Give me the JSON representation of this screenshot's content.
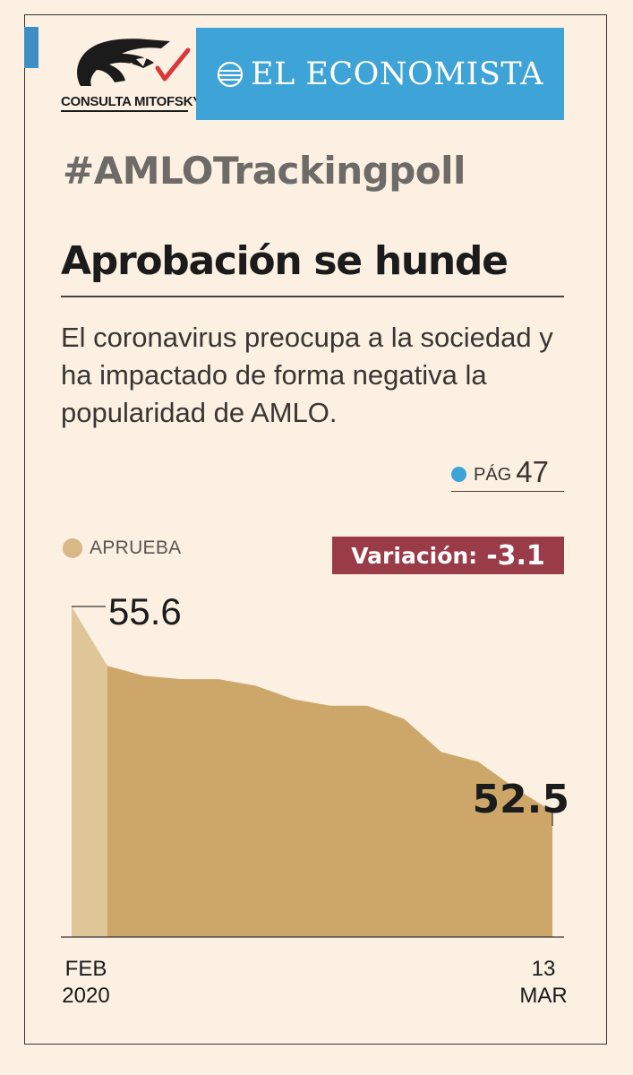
{
  "branding": {
    "left_logo_text": "CONSULTA MITOFSKY",
    "right_logo_text": "EL ECONOMISTA",
    "right_logo_color": "#3ea3d6"
  },
  "hashtag": "#AMLOTrackingpoll",
  "headline": "Aprobación se hunde",
  "dek": "El coronavirus preocupa a la sociedad y ha impactado de forma negativa la popularidad de AMLO.",
  "page_ref": {
    "label": "PÁG",
    "number": "47",
    "dot_color": "#3ea3d6"
  },
  "variation": {
    "label": "Variación:",
    "value": "-3.1",
    "color": "#9a3b48"
  },
  "chart_data": {
    "type": "area",
    "series": [
      {
        "name": "APRUEBA",
        "values": [
          55.6,
          54.7,
          54.55,
          54.5,
          54.5,
          54.4,
          54.2,
          54.1,
          54.1,
          53.9,
          53.4,
          53.25,
          52.85,
          52.5
        ],
        "color": "#cda76a",
        "first_segment_color": "#dfc699"
      }
    ],
    "start_label": "55.6",
    "end_label": "52.5",
    "x_labels": {
      "start": [
        "FEB",
        "2020"
      ],
      "end": [
        "13",
        "MAR"
      ]
    },
    "ylim": [
      50.6,
      55.6
    ],
    "grid": false,
    "legend": "top-left"
  }
}
